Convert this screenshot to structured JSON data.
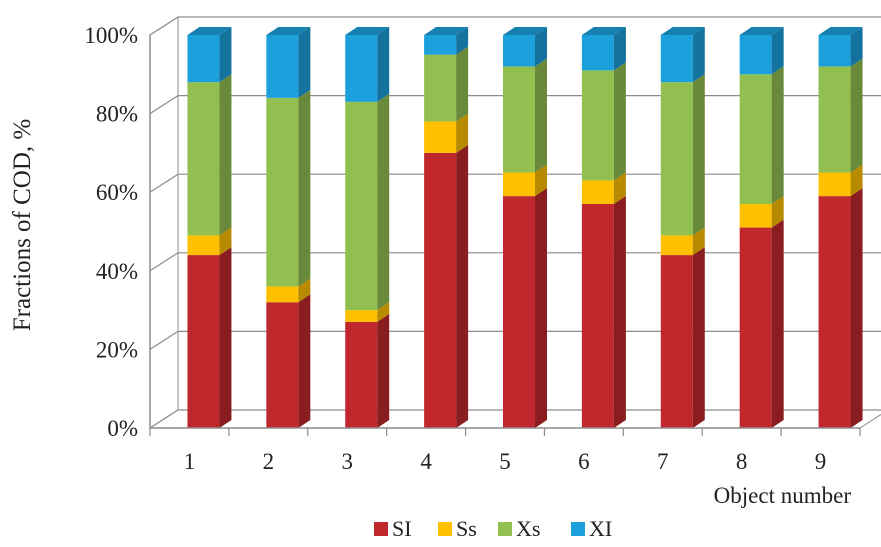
{
  "chart_data": {
    "type": "bar",
    "stacked": true,
    "percent_stacked": true,
    "three_d": true,
    "categories": [
      "1",
      "2",
      "3",
      "4",
      "5",
      "6",
      "7",
      "8",
      "9"
    ],
    "series": [
      {
        "name": "SI",
        "color": "#c0282d",
        "values": [
          44,
          32,
          27,
          70,
          59,
          57,
          44,
          51,
          59
        ]
      },
      {
        "name": "Ss",
        "color": "#ffc000",
        "values": [
          5,
          4,
          3,
          8,
          6,
          6,
          5,
          6,
          6
        ]
      },
      {
        "name": "Xs",
        "color": "#92c050",
        "values": [
          39,
          48,
          53,
          17,
          27,
          28,
          39,
          33,
          27
        ]
      },
      {
        "name": "XI",
        "color": "#1ca0dc",
        "values": [
          12,
          16,
          17,
          5,
          8,
          9,
          12,
          10,
          8
        ]
      }
    ],
    "ylabel": "Fractions of COD, %",
    "xlabel": "Object number",
    "ylim": [
      0,
      100
    ],
    "yticks": [
      "0%",
      "20%",
      "40%",
      "60%",
      "80%",
      "100%"
    ],
    "grid": true,
    "legend_position": "bottom"
  }
}
